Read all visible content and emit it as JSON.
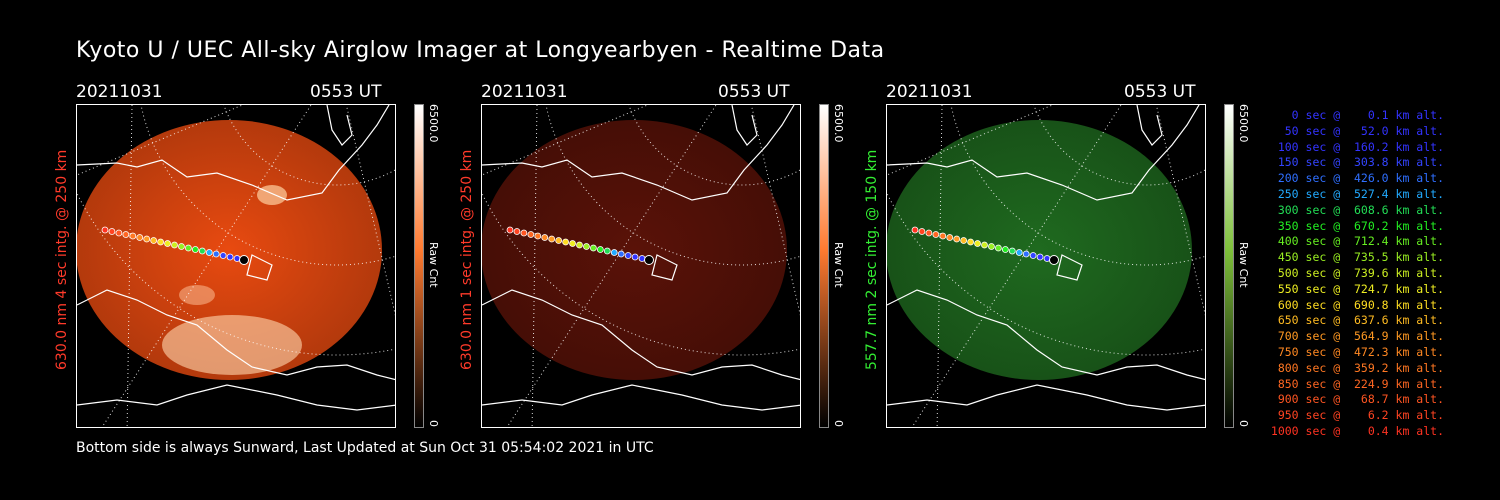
{
  "title": "Kyoto U / UEC All-sky Airglow Imager at Longyearbyen - Realtime Data",
  "panels": [
    {
      "date": "20211031",
      "time": "0553 UT",
      "ylabel": "630.0 nm  4 sec intg. @ 250 km",
      "ylabel_color": "#ff3a2a",
      "cbar_max": "6500.0",
      "cbar_min": "0",
      "cbar_unit": "Raw Cnt",
      "tint": "#e84a10"
    },
    {
      "date": "20211031",
      "time": "0553 UT",
      "ylabel": "630.0 nm  1 sec intg. @ 250 km",
      "ylabel_color": "#ff3a2a",
      "cbar_max": "6500.0",
      "cbar_min": "0",
      "cbar_unit": "Raw Cnt",
      "tint": "#5a1208"
    },
    {
      "date": "20211031",
      "time": "0553 UT",
      "ylabel": "557.7 nm  2 sec intg. @ 150 km",
      "ylabel_color": "#33ee33",
      "cbar_max": "6500.0",
      "cbar_min": "0",
      "cbar_unit": "Raw Cnt",
      "tint": "#1f6a1f"
    }
  ],
  "footer": "Bottom side is always Sunward, Last Updated at Sun Oct 31 05:54:02 2021 in UTC",
  "legend": [
    {
      "text": "0 sec @    0.1 km alt.",
      "color": "#3333ff"
    },
    {
      "text": "50 sec @   52.0 km alt.",
      "color": "#3333ff"
    },
    {
      "text": "100 sec @  160.2 km alt.",
      "color": "#3333ff"
    },
    {
      "text": "150 sec @  303.8 km alt.",
      "color": "#3344ff"
    },
    {
      "text": "200 sec @  426.0 km alt.",
      "color": "#2f6fff"
    },
    {
      "text": "250 sec @  527.4 km alt.",
      "color": "#22aaff"
    },
    {
      "text": "300 sec @  608.6 km alt.",
      "color": "#22dd55"
    },
    {
      "text": "350 sec @  670.2 km alt.",
      "color": "#22ee22"
    },
    {
      "text": "400 sec @  712.4 km alt.",
      "color": "#66ee22"
    },
    {
      "text": "450 sec @  735.5 km alt.",
      "color": "#99ee22"
    },
    {
      "text": "500 sec @  739.6 km alt.",
      "color": "#ccee22"
    },
    {
      "text": "550 sec @  724.7 km alt.",
      "color": "#eeee22"
    },
    {
      "text": "600 sec @  690.8 km alt.",
      "color": "#ffdd22"
    },
    {
      "text": "650 sec @  637.6 km alt.",
      "color": "#ffbb22"
    },
    {
      "text": "700 sec @  564.9 km alt.",
      "color": "#ff9922"
    },
    {
      "text": "750 sec @  472.3 km alt.",
      "color": "#ff8822"
    },
    {
      "text": "800 sec @  359.2 km alt.",
      "color": "#ff7722"
    },
    {
      "text": "850 sec @  224.9 km alt.",
      "color": "#ff6622"
    },
    {
      "text": "900 sec @   68.7 km alt.",
      "color": "#ff5522"
    },
    {
      "text": "950 sec @    6.2 km alt.",
      "color": "#ff4422"
    },
    {
      "text": "1000 sec @    0.4 km alt.",
      "color": "#ff3322"
    }
  ]
}
